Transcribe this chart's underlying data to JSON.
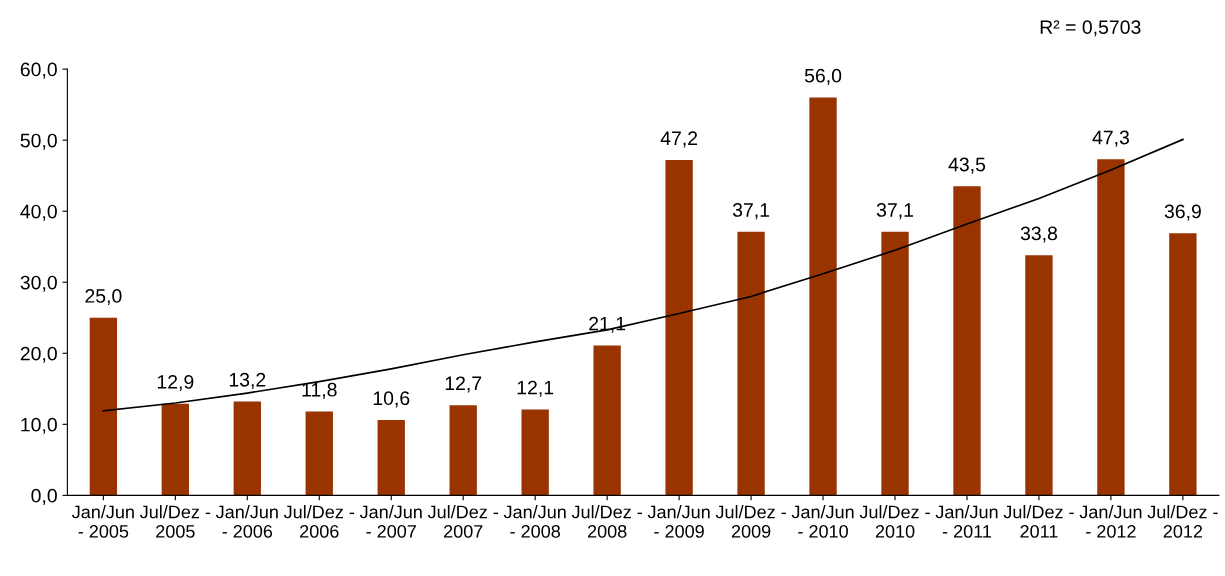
{
  "chart_data": {
    "type": "bar",
    "categories": [
      "Jan/Jun\n- 2005",
      "Jul/Dez -\n2005",
      "Jan/Jun\n- 2006",
      "Jul/Dez -\n2006",
      "Jan/Jun\n- 2007",
      "Jul/Dez -\n2007",
      "Jan/Jun\n- 2008",
      "Jul/Dez -\n2008",
      "Jan/Jun\n- 2009",
      "Jul/Dez -\n2009",
      "Jan/Jun\n- 2010",
      "Jul/Dez -\n2010",
      "Jan/Jun\n- 2011",
      "Jul/Dez -\n2011",
      "Jan/Jun\n- 2012",
      "Jul/Dez -\n2012"
    ],
    "series": [
      {
        "color": "#993300",
        "values": [
          25.0,
          12.9,
          13.2,
          11.8,
          10.6,
          12.7,
          12.1,
          21.1,
          47.2,
          37.1,
          56.0,
          37.1,
          43.5,
          33.8,
          47.3,
          36.9
        ],
        "value_labels": [
          "25,0",
          "12,9",
          "13,2",
          "11,8",
          "10,6",
          "12,7",
          "12,1",
          "21,1",
          "47,2",
          "37,1",
          "56,0",
          "37,1",
          "43,5",
          "33,8",
          "47,3",
          "36,9"
        ]
      },
      {
        "type": "line",
        "color": "#000000",
        "values": [
          11.9,
          13.0,
          14.4,
          16.0,
          17.8,
          19.8,
          21.6,
          23.3,
          25.6,
          28.0,
          31.2,
          34.5,
          38.2,
          41.8,
          45.8,
          50.1
        ]
      }
    ],
    "ylim": [
      0,
      60
    ],
    "yticks": [
      {
        "value": 0,
        "label": "0,0"
      },
      {
        "value": 10,
        "label": "10,0"
      },
      {
        "value": 20,
        "label": "20,0"
      },
      {
        "value": 30,
        "label": "30,0"
      },
      {
        "value": 40,
        "label": "40,0"
      },
      {
        "value": 50,
        "label": "50,0"
      },
      {
        "value": 60,
        "label": "60,0"
      }
    ],
    "grid": false,
    "legend": false,
    "marker": "none",
    "line_style": "solid",
    "annotations": [
      "R² = 0,5703"
    ]
  }
}
